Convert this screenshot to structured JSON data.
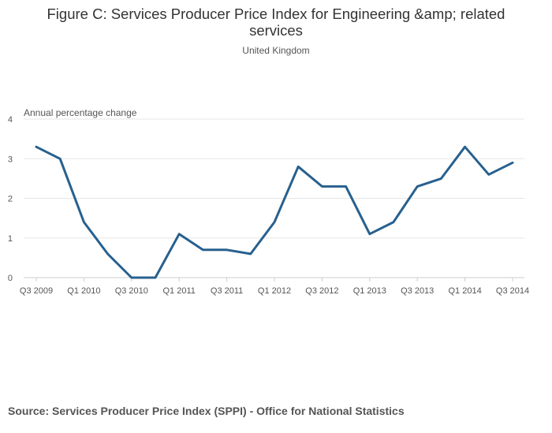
{
  "chart_data": {
    "type": "line",
    "title": "Figure C: Services Producer Price Index for Engineering &amp; related services",
    "subtitle": "United Kingdom",
    "ylabel": "Annual percentage change",
    "xlabel": "",
    "ylim": [
      0,
      4
    ],
    "yticks": [
      0,
      1,
      2,
      3,
      4
    ],
    "grid": true,
    "legend": "none",
    "x": [
      "Q3 2009",
      "Q4 2009",
      "Q1 2010",
      "Q2 2010",
      "Q3 2010",
      "Q4 2010",
      "Q1 2011",
      "Q2 2011",
      "Q3 2011",
      "Q4 2011",
      "Q1 2012",
      "Q2 2012",
      "Q3 2012",
      "Q4 2012",
      "Q1 2013",
      "Q2 2013",
      "Q3 2013",
      "Q4 2013",
      "Q1 2014",
      "Q2 2014",
      "Q3 2014"
    ],
    "xtick_labels": [
      "Q3 2009",
      "Q1 2010",
      "Q3 2010",
      "Q1 2011",
      "Q3 2011",
      "Q1 2012",
      "Q3 2012",
      "Q1 2013",
      "Q3 2013",
      "Q1 2014",
      "Q3 2014"
    ],
    "series": [
      {
        "name": "Engineering & related services",
        "values": [
          3.3,
          3.0,
          1.4,
          0.6,
          0.0,
          0.0,
          1.1,
          0.7,
          0.7,
          0.6,
          1.4,
          2.8,
          2.3,
          2.3,
          1.1,
          1.4,
          2.3,
          2.5,
          3.3,
          2.6,
          2.9
        ],
        "color": "#27608e"
      }
    ]
  },
  "source": "Source: Services Producer Price Index (SPPI) - Office for National Statistics",
  "colors": {
    "line": "#27608e",
    "grid": "#e6e6e6",
    "text": "#555555"
  }
}
